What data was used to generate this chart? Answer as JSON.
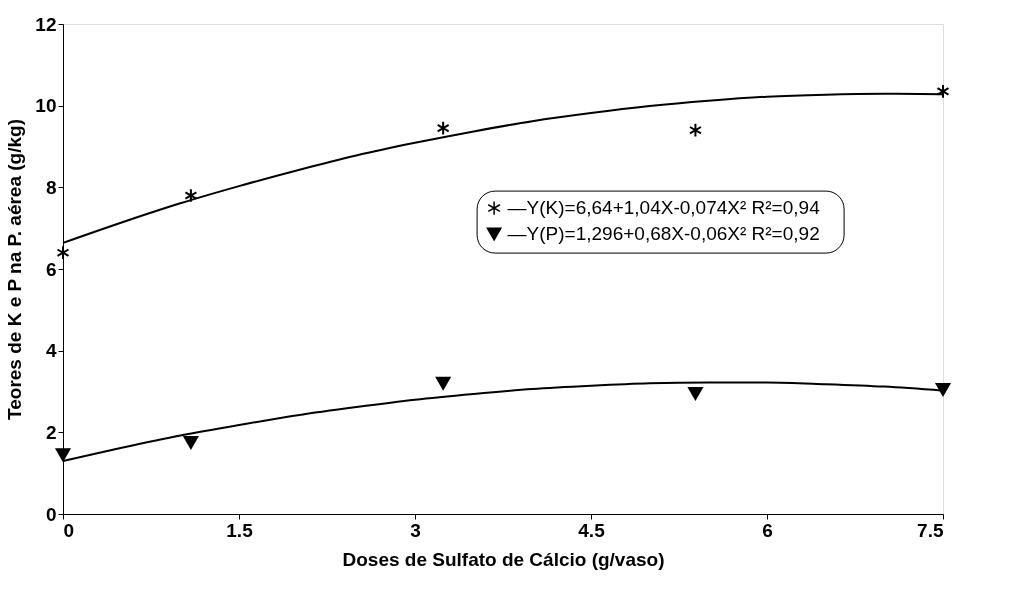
{
  "chart_data": {
    "type": "scatter",
    "xlabel": "Doses de Sulfato de Cálcio (g/vaso)",
    "ylabel": "Teores de K e P na P. aérea (g/kg)",
    "xlim": [
      0,
      7.5
    ],
    "xticks": [
      0,
      1.5,
      3,
      4.5,
      6,
      7.5
    ],
    "ylim": [
      0,
      12
    ],
    "yticks": [
      0,
      2,
      4,
      6,
      8,
      10,
      12
    ],
    "grid": false,
    "legend": "right",
    "series": [
      {
        "name": "—Y(K)=6,64+1,04X-0,074X²   R²=0,94",
        "marker": "cross",
        "color": "#000000",
        "x": [
          0,
          1.09,
          3.24,
          5.39,
          7.5
        ],
        "values": [
          6.4,
          7.8,
          9.45,
          9.4,
          10.35
        ]
      },
      {
        "name": "—Y(P)=1,296+0,68X-0,06X²    R²=0,92",
        "marker": "triangle",
        "color": "#000000",
        "x": [
          0,
          1.09,
          3.24,
          5.39,
          7.5
        ],
        "values": [
          1.45,
          1.75,
          3.2,
          2.95,
          3.05
        ]
      },
      {
        "type": "line",
        "color": "#000000",
        "x": [
          0,
          0.5,
          1,
          1.5,
          2,
          2.5,
          3,
          3.5,
          4,
          4.5,
          5,
          5.5,
          6,
          6.5,
          7,
          7.5
        ],
        "values": [
          6.64,
          7.14,
          7.61,
          8.03,
          8.42,
          8.78,
          9.09,
          9.37,
          9.62,
          9.82,
          9.99,
          10.12,
          10.22,
          10.27,
          10.29,
          10.28
        ]
      },
      {
        "type": "line",
        "color": "#000000",
        "x": [
          0,
          0.5,
          1,
          1.5,
          2,
          2.5,
          3,
          3.5,
          4,
          4.5,
          5,
          5.5,
          6,
          6.5,
          7,
          7.5
        ],
        "values": [
          1.3,
          1.62,
          1.92,
          2.18,
          2.42,
          2.62,
          2.8,
          2.94,
          3.06,
          3.14,
          3.2,
          3.22,
          3.22,
          3.18,
          3.12,
          3.02
        ]
      }
    ]
  }
}
